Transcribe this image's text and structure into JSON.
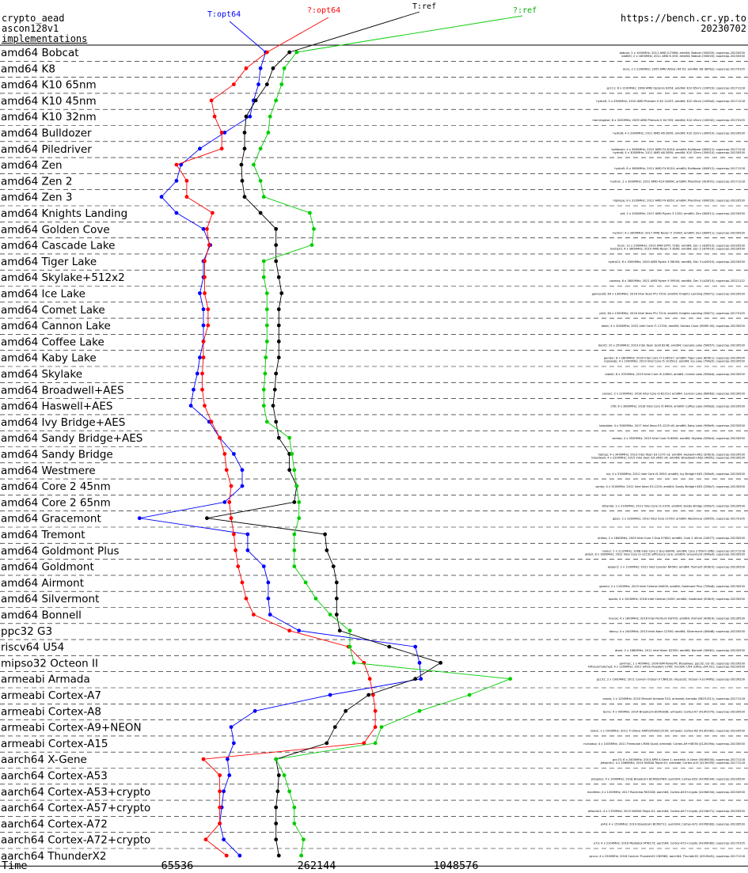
{
  "header": {
    "line1": "crypto_aead",
    "line2": "ascon128v1",
    "line3": "implementations",
    "site": "https://bench.cr.yp.to",
    "date": "20230702"
  },
  "legend": {
    "t_opt64": "T:opt64",
    "q_opt64": "?:opt64",
    "t_ref": "T:ref",
    "q_ref": "?:ref"
  },
  "colors": {
    "t_opt64": "#0000ff",
    "q_opt64": "#ff0000",
    "t_ref": "#000000",
    "q_ref": "#00cc00"
  },
  "chart_data": {
    "type": "line",
    "x_scale": "log2",
    "xlabel": "Time",
    "xticks": [
      "65536",
      "262144",
      "1048576"
    ],
    "categories": [
      "amd64 Bobcat",
      "amd64 K8",
      "amd64 K10 65nm",
      "amd64 K10 45nm",
      "amd64 K10 32nm",
      "amd64 Bulldozer",
      "amd64 Piledriver",
      "amd64 Zen",
      "amd64 Zen 2",
      "amd64 Zen 3",
      "amd64 Knights Landing",
      "amd64 Golden Cove",
      "amd64 Cascade Lake",
      "amd64 Tiger Lake",
      "amd64 Skylake+512x2",
      "amd64 Ice Lake",
      "amd64 Comet Lake",
      "amd64 Cannon Lake",
      "amd64 Coffee Lake",
      "amd64 Kaby Lake",
      "amd64 Skylake",
      "amd64 Broadwell+AES",
      "amd64 Haswell+AES",
      "amd64 Ivy Bridge+AES",
      "amd64 Sandy Bridge+AES",
      "amd64 Sandy Bridge",
      "amd64 Westmere",
      "amd64 Core 2 45nm",
      "amd64 Core 2 65nm",
      "amd64 Gracemont",
      "amd64 Tremont",
      "amd64 Goldmont Plus",
      "amd64 Goldmont",
      "amd64 Airmont",
      "amd64 Silvermont",
      "amd64 Bonnell",
      "ppc32 G3",
      "riscv64 U54",
      "mipso32 Octeon II",
      "armeabi Armada",
      "armeabi Cortex-A7",
      "armeabi Cortex-A8",
      "armeabi Cortex-A9+NEON",
      "armeabi Cortex-A15",
      "aarch64 X-Gene",
      "aarch64 Cortex-A53",
      "aarch64 Cortex-A53+crypto",
      "aarch64 Cortex-A57+crypto",
      "aarch64 Cortex-A72",
      "aarch64 Cortex-A72+crypto",
      "aarch64 ThunderX2"
    ],
    "machines": [
      "bobcat; 2 x 1000MHz; 2011 AMD G-T56N; amd64; Bobcat (500f20); supercop-20230530",
      "bla600; 2 x 1600MHz; 2011 AMD E-450; amd64; Bobcat (500f20); supercop-20230530",
      "dure; 2 x 2200MHz; 2005 AMD Athlon 64 X2; amd64; K8 (60fb2); supercop-20170105",
      "gcc11; 6 x 2100MHz; 2008 AMD Opteron 8354; amd64; K10 65nm (100f23); supercop-20171218",
      "hydra9; 3 x 3300MHz; 2010 AMD Phenom II X4 1100T; amd64; K10 45nm (100fa0); supercop-20171218",
      "morningstar; 6 x 3200MHz; 2009 AMD Phenom II X4 955; amd64; K10 45nm (100f42); supercop-20170105",
      "hydra6; 4 x 2900MHz; 2011 AMD A6-3650; amd64; K10 32nm (300f10); supercop-20230530",
      "hydra8; 4 x 3000MHz; 2011 AMD A8-3850; amd64; K10 32nm (300f10); supercop-20230530",
      "bulldozer; 4 x 3600MHz; 2012 AMD FX-8150; amd64; Bulldozer (600f12); supercop-20171218",
      "hydra5; 8 x 3600MHz; 2011 AMD FX-8120; amd64; Bulldozer (600f12); supercop-20171218",
      "hydra1; 2 x 3900MHz; 2012 AMD A10-5800K; amd64; Piledriver (610f01); supercop-20171218",
      "hiphepa; 8 x 3100MHz; 2012 AMD FX-8350; amd64; Piledriver (600f20); supercop-20230530",
      "pi4; 2 x 2000MHz; 2017 AMD Ryzen 3 1200; amd64; Zen (800f11); supercop-20230530",
      "hydra7; 4 x 3400MHz; 2017 AMD Ryzen 5 1500X; amd64; Zen (800f11); supercop-20230530",
      "mul2; 12 x 2900MHz; 2019 AMD EPYC 7282; amd64; Zen 2 (830f10); supercop-20230530",
      "hydra20; 4 x 3600MHz; 2019 AMD Ryzen 5 3600; amd64; Zen 2 (870f10); supercop-20230530",
      "hydra12; 6 x 3500MHz; 2020 AMD Ryzen 5 5600X; amd64; Zen 3 (a20f10); supercop-20230530",
      "cosmos; 6 x 3800MHz; 2021 AMD Ryzen 9 5950X; amd64; Zen 3 (a20f10); supercop-20221122",
      "gamacold; 64 x 1300MHz; 2016 Intel Xeon Phi 7250; amd64; Knights Landing (50671); supercop-20230530",
      "phi2; 64 x 1500MHz; 2016 Intel Xeon Phi 7210; amd64; Knights Landing (50671); supercop-20170105",
      "alder; 4 x 3000MHz; 2022 Intel Core i7-11700; amd64; Golden Cove (906f5-00); supercop-20230530",
      "dock5; 20 x 2500MHz; 2019 Intel Xeon Gold 6248; amd64; Cascade Lake (50657); supercop-20230530",
      "gandur; 8 x 2800MHz; 2020 Intel Core i7-1165G7; amd64; Tiger Lake (806c1); supercop-20230530",
      "icelaketp; 4 x 1000MHz; 2019 Intel Core i5-1035G1; amd64; Ice Lake (706e5); supercop-20230530",
      "rabid2; 6 x 3700MHz; 2019 Intel Core i5-10600; amd64; Comet Lake (906ed); supercop-20230530",
      "cansec; 2 x 2200MHz; 2018 Intel Core i3-8121U; amd64; Cannon Lake (60663); supercop-20230530",
      "cfl0; 6 x 3600MHz; 2018 Intel Core i5-8400; amd64; Coffee Lake (906eb); supercop-20230530",
      "kabylake; 4 x 3000MHz; 2017 Intel Xeon E3-1220 v6; amd64; Kaby Lake (906e9); supercop-20230530",
      "samba; 4 x 3500MHz; 2015 Intel Core i5-6600; amd64; Skylake (506e3); supercop-20230530",
      "broadwell; 4 x 2200MHz; 2015 Intel Xeon E5-2650 v4; amd64; Broadwell+AES (406f1); supercop-20230530",
      "hiphep; 4 x 3400MHz; 2013 Intel Xeon E3-1275 v3; amd64; Haswell+AES (306c3); supercop-20230530",
      "ivy; 4 x 3300MHz; 2012 Intel Core i5-3550; amd64; Ivy Bridge+AES (306a9); supercop-20230530",
      "sandy; 4 x 3100MHz; 2011 Intel Xeon E3-1220; amd64; Sandy Bridge+AES (206a7); supercop-20230530",
      "bfsandy; 2 x 2100MHz; 2011 Intel Core i3-2100; amd64; Sandy Bridge (206a7); supercop-20230530",
      "giper; 2 x 3200MHz; 2010 Intel Core i3-550; amd64; Westmere (20655); supercop-20170105",
      "utilisis; 2 x 2600MHz; 2009 Intel Core 2 Duo E7600; amd64; Core 2 45nm (10677); supercop-20230530",
      "latour; 2 x 2137MHz; 2008 Intel Core 2 Duo E6400; amd64; Core 2 65nm (6fb); supercop-20171218",
      "alderl; 8 x 1600MHz; 2022 Intel Core i3-1215U efficiency core; amd64; Gracemont (906a4); supercop-20230530",
      "jasper2; 2 x 1100MHz; 2021 Intel Celeron N4500; amd64; Tremont (906c0); supercop-20230530",
      "gemini; 2 x 1100MHz; 2019 Intel Celeron N4000; amd64; Goldmont Plus (706a8); supercop-20230530",
      "apollo; 4 x 1500MHz; 2016 Intel Celeron J3455; amd64; Goldmont (506c9); supercop-20230530",
      "macos; 4 x 1600MHz; 2016 Intel Pentium N3700; amd64; Airmont (406c4); supercop-20230530",
      "dancy; 4 x 2400MHz; 2013 Intel Atom C2550; amd64; Silvermont (406d8); supercop-20230530",
      "atom; 2 x 1660MHz; 2011 Intel Atom D2550; amd64; Bonnell (30661); supercop-20230530",
      "pwrmac; 1 x 400MHz; 1999 IBM PowerPC Broadway; ppc32; G3 (0); supercop-20230530",
      "hifiveunmatched; 4 x 1200MHz; 2021 SiFive Freedom U740; riscv64; U54 (sifive,u54-mc); supercop-20230530",
      "gcc31; 2 x 1000MHz; 2011 Cavium Octeon II CN6120; mipso32; Octeon II (cnMIPS); supercop-20230530",
      "cosea; 1 x 1200MHz; 2010 Marvell Armada 510; armeabi; Armada (56251311); supercop-20171218",
      "berry; 4 x 900MHz; 2014 Broadcom BCM2836; armeabi; Cortex-A7 (410fc075); supercop-20230530",
      "black; 1 x 1000MHz; 2012 TI Sitara XAM3359AZCZ100; armeabi; Cortex-A8 (413fc082); supercop-20230530",
      "nvicadua; 4 x 1000MHz; 2011 Freescale i.MX6 Quad; armeabi; Cortex-A9+NEON (412fc09a); supercop-20230530",
      "jetsontk1; 4 x 2066MHz; 2014 NVIDIA Tegra K1; armeabi; Cortex-A15 (413fc0f3); supercop-20171218",
      "gcc15; 8 x 2400MHz; 2014 APM X-Gene 1; aarch64; X-Gene (500f0000); supercop-20171218",
      "pi3aplus; 4 x 1400MHz; 2018 Broadcom BCM2837B0; aarch64; Cortex-A53 (410fd034); supercop-20230530",
      "manifest; 4 x 1200MHz; 2017 Rockchip RK3328; aarch64; Cortex-A53+crypto (410fd034); supercop-20230530",
      "jetsontx1; 4 x 1700MHz; 2015 NVIDIA Tegra X1; aarch64; Cortex-A57+crypto (411fd071); supercop-20230530",
      "pi4b; 4 x 1500MHz; 2019 Broadcom BCM2711; aarch64; Cortex-A72 (410fd083); supercop-20230530",
      "a73; 4 x 2100MHz; 2016 Mediatek MT8173; aarch64; Cortex-A72+crypto (410fd080); supercop-20170105",
      "gcccx; 4 x 2500MHz; 2018 Cavium ThunderX2 CN9980; aarch64; ThunderX2 (431f0af1); supercop-20171218"
    ],
    "series": [
      {
        "name": "T:opt64",
        "color": "#0000ff",
        "values": [
          158000,
          150000,
          147000,
          140000,
          135000,
          105000,
          82000,
          68000,
          65000,
          56000,
          65000,
          85000,
          91000,
          85000,
          85000,
          82000,
          85000,
          85000,
          85000,
          82000,
          80000,
          77000,
          75000,
          90000,
          100000,
          115000,
          125000,
          125000,
          105000,
          45000,
          132000,
          132000,
          155000,
          162000,
          162000,
          165000,
          220000,
          700000,
          730000,
          740000,
          300000,
          142000,
          112000,
          115000,
          108000,
          110000,
          104000,
          102000,
          100000,
          104000,
          122000
        ]
      },
      {
        "name": "?:opt64",
        "color": "#ff0000",
        "values": [
          160000,
          130000,
          115000,
          92000,
          95000,
          102000,
          102000,
          65000,
          72000,
          72000,
          93000,
          88000,
          90000,
          86000,
          86000,
          86000,
          89000,
          89000,
          85000,
          85000,
          84000,
          84000,
          86000,
          92000,
          100000,
          105000,
          107000,
          112000,
          110000,
          112000,
          115000,
          117000,
          120000,
          125000,
          130000,
          140000,
          200000,
          360000,
          420000,
          445000,
          460000,
          470000,
          470000,
          420000,
          85000,
          100000,
          100000,
          100000,
          100000,
          87000,
          107000
        ]
      },
      {
        "name": "T:ref",
        "color": "#000000",
        "values": [
          200000,
          170000,
          160000,
          143000,
          130000,
          128000,
          128000,
          124000,
          125000,
          128000,
          150000,
          175000,
          175000,
          175000,
          180000,
          185000,
          180000,
          180000,
          180000,
          180000,
          175000,
          173000,
          170000,
          175000,
          180000,
          200000,
          200000,
          215000,
          210000,
          88000,
          285000,
          290000,
          310000,
          320000,
          320000,
          320000,
          330000,
          540000,
          900000,
          700000,
          440000,
          350000,
          315000,
          290000,
          175000,
          180000,
          178000,
          175000,
          175000,
          175000,
          180000
        ]
      },
      {
        "name": "?:ref",
        "color": "#00cc00",
        "values": [
          215000,
          190000,
          185000,
          175000,
          165000,
          162000,
          150000,
          140000,
          150000,
          155000,
          245000,
          255000,
          250000,
          155000,
          155000,
          160000,
          160000,
          160000,
          160000,
          158000,
          157000,
          155000,
          155000,
          160000,
          200000,
          205000,
          210000,
          215000,
          220000,
          220000,
          210000,
          210000,
          210000,
          235000,
          260000,
          300000,
          365000,
          365000,
          380000,
          1800000,
          1200000,
          730000,
          500000,
          470000,
          175000,
          190000,
          200000,
          210000,
          210000,
          230000,
          225000
        ]
      }
    ]
  }
}
